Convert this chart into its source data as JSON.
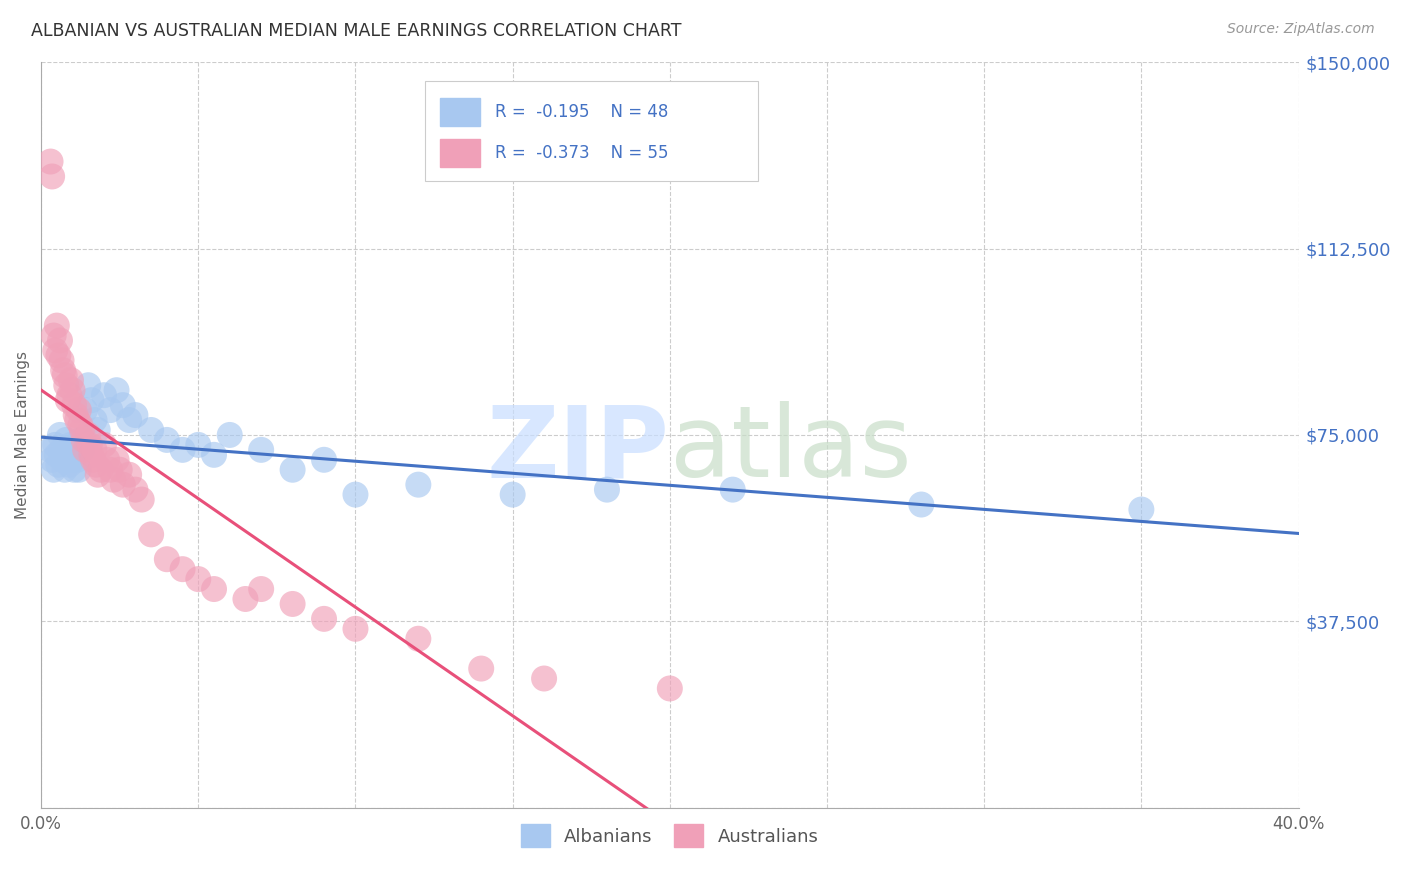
{
  "title": "ALBANIAN VS AUSTRALIAN MEDIAN MALE EARNINGS CORRELATION CHART",
  "source": "Source: ZipAtlas.com",
  "ylabel": "Median Male Earnings",
  "xmin": 0.0,
  "xmax": 40.0,
  "ymin": 0,
  "ymax": 150000,
  "yticks": [
    0,
    37500,
    75000,
    112500,
    150000
  ],
  "ytick_labels": [
    "",
    "$37,500",
    "$75,000",
    "$112,500",
    "$150,000"
  ],
  "xticks": [
    0.0,
    5.0,
    10.0,
    15.0,
    20.0,
    25.0,
    30.0,
    35.0,
    40.0
  ],
  "xtick_labels": [
    "0.0%",
    "",
    "",
    "",
    "",
    "",
    "",
    "",
    "40.0%"
  ],
  "blue_color": "#A8C8F0",
  "pink_color": "#F0A0B8",
  "blue_line_color": "#4472C4",
  "pink_line_color": "#E8507A",
  "legend_label_blue": "Albanians",
  "legend_label_pink": "Australians",
  "background_color": "#FFFFFF",
  "albanians_x": [
    0.3,
    0.35,
    0.4,
    0.45,
    0.5,
    0.55,
    0.6,
    0.65,
    0.7,
    0.75,
    0.8,
    0.85,
    0.9,
    0.95,
    1.0,
    1.05,
    1.1,
    1.15,
    1.2,
    1.25,
    1.3,
    1.4,
    1.5,
    1.6,
    1.7,
    1.8,
    2.0,
    2.2,
    2.4,
    2.6,
    2.8,
    3.0,
    3.5,
    4.0,
    4.5,
    5.0,
    5.5,
    6.0,
    7.0,
    8.0,
    9.0,
    10.0,
    12.0,
    15.0,
    18.0,
    22.0,
    28.0,
    35.0
  ],
  "albanians_y": [
    72000,
    70000,
    68000,
    73000,
    71000,
    69000,
    75000,
    72000,
    70000,
    68000,
    74000,
    71000,
    69000,
    73000,
    70000,
    68000,
    72000,
    70000,
    68000,
    74000,
    72000,
    80000,
    85000,
    82000,
    78000,
    76000,
    83000,
    80000,
    84000,
    81000,
    78000,
    79000,
    76000,
    74000,
    72000,
    73000,
    71000,
    75000,
    72000,
    68000,
    70000,
    63000,
    65000,
    63000,
    64000,
    64000,
    61000,
    60000
  ],
  "australians_x": [
    0.3,
    0.35,
    0.4,
    0.45,
    0.5,
    0.55,
    0.6,
    0.65,
    0.7,
    0.75,
    0.8,
    0.85,
    0.9,
    0.95,
    1.0,
    1.05,
    1.1,
    1.15,
    1.2,
    1.25,
    1.3,
    1.35,
    1.4,
    1.5,
    1.55,
    1.6,
    1.65,
    1.7,
    1.75,
    1.8,
    1.9,
    2.0,
    2.1,
    2.2,
    2.3,
    2.4,
    2.5,
    2.6,
    2.8,
    3.0,
    3.2,
    3.5,
    4.0,
    4.5,
    5.0,
    5.5,
    6.5,
    7.0,
    8.0,
    9.0,
    10.0,
    12.0,
    14.0,
    16.0,
    20.0
  ],
  "australians_y": [
    130000,
    127000,
    95000,
    92000,
    97000,
    91000,
    94000,
    90000,
    88000,
    87000,
    85000,
    82000,
    83000,
    86000,
    84000,
    81000,
    79000,
    78000,
    80000,
    77000,
    76000,
    74000,
    72000,
    75000,
    73000,
    71000,
    70000,
    72000,
    69000,
    67000,
    68000,
    73000,
    70000,
    68000,
    66000,
    70000,
    68000,
    65000,
    67000,
    64000,
    62000,
    55000,
    50000,
    48000,
    46000,
    44000,
    42000,
    44000,
    41000,
    38000,
    36000,
    34000,
    28000,
    26000,
    24000
  ]
}
